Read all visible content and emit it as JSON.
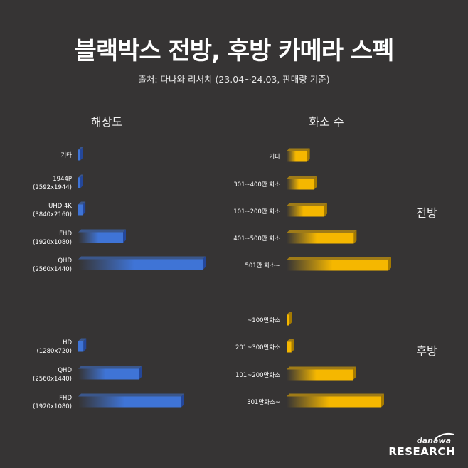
{
  "header": {
    "title": "블랙박스 전방, 후방 카메라 스펙",
    "subtitle": "출처: 다나와 리서치 (23.04~24.03, 판매량 기준)"
  },
  "columns": {
    "left": "해상도",
    "right": "화소 수"
  },
  "groups": {
    "front": "전방",
    "rear": "후방"
  },
  "colors": {
    "blue": "#3f74d6",
    "yellow": "#f5b700",
    "background": "#363434"
  },
  "chart_data": [
    {
      "type": "bar",
      "panel": "front-resolution",
      "categories": [
        "기타",
        "1944P\n(2592x1944)",
        "UHD 4K\n(3840x2160)",
        "FHD\n(1920x1080)",
        "QHD\n(2560x1440)"
      ],
      "values": [
        1,
        1,
        3.5,
        36,
        100
      ],
      "unit": "relative"
    },
    {
      "type": "bar",
      "panel": "front-pixels",
      "categories": [
        "기타",
        "301~400만 화소",
        "101~200만 화소",
        "401~500만 화소",
        "501만 화소~"
      ],
      "values": [
        20,
        27,
        37,
        66,
        100
      ],
      "unit": "relative"
    },
    {
      "type": "bar",
      "panel": "rear-resolution",
      "categories": [
        "HD\n(1280x720)",
        "QHD\n(2560x1440)",
        "FHD\n(1920x1080)"
      ],
      "values": [
        5,
        59,
        100
      ],
      "unit": "relative"
    },
    {
      "type": "bar",
      "panel": "rear-pixels",
      "categories": [
        "~100만화소",
        "201~300만화소",
        "101~200만화소",
        "301만화소~"
      ],
      "values": [
        2,
        5,
        70,
        100
      ],
      "unit": "relative"
    }
  ],
  "logo": {
    "small": "danawa",
    "big": "RESEARCH"
  }
}
